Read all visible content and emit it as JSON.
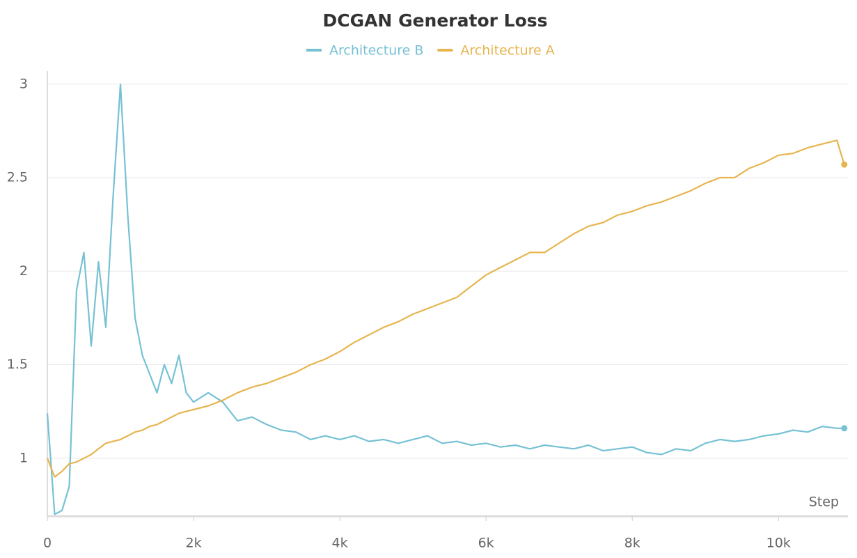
{
  "chart_data": {
    "type": "line",
    "title": "DCGAN Generator Loss",
    "x_label": "Step",
    "x": [
      0,
      100,
      200,
      300,
      400,
      500,
      600,
      700,
      800,
      900,
      1000,
      1100,
      1200,
      1300,
      1400,
      1500,
      1600,
      1700,
      1800,
      1900,
      2000,
      2200,
      2400,
      2600,
      2800,
      3000,
      3200,
      3400,
      3600,
      3800,
      4000,
      4200,
      4400,
      4600,
      4800,
      5000,
      5200,
      5400,
      5600,
      5800,
      6000,
      6200,
      6400,
      6600,
      6800,
      7000,
      7200,
      7400,
      7600,
      7800,
      8000,
      8200,
      8400,
      8600,
      8800,
      9000,
      9200,
      9400,
      9600,
      9800,
      10000,
      10200,
      10400,
      10600,
      10800,
      10900
    ],
    "series": [
      {
        "name": "Architecture B",
        "color": "#76c1d4",
        "values": [
          1.24,
          0.7,
          0.72,
          0.85,
          1.9,
          2.1,
          1.6,
          2.05,
          1.7,
          2.4,
          3.0,
          2.3,
          1.75,
          1.55,
          1.45,
          1.35,
          1.5,
          1.4,
          1.55,
          1.35,
          1.3,
          1.35,
          1.3,
          1.2,
          1.22,
          1.18,
          1.15,
          1.14,
          1.1,
          1.12,
          1.1,
          1.12,
          1.09,
          1.1,
          1.08,
          1.1,
          1.12,
          1.08,
          1.09,
          1.07,
          1.08,
          1.06,
          1.07,
          1.05,
          1.07,
          1.06,
          1.05,
          1.07,
          1.04,
          1.05,
          1.06,
          1.03,
          1.02,
          1.05,
          1.04,
          1.08,
          1.1,
          1.09,
          1.1,
          1.12,
          1.13,
          1.15,
          1.14,
          1.17,
          1.16,
          1.16
        ]
      },
      {
        "name": "Architecture A",
        "color": "#e6b54f",
        "values": [
          1.0,
          0.9,
          0.93,
          0.97,
          0.98,
          1.0,
          1.02,
          1.05,
          1.08,
          1.09,
          1.1,
          1.12,
          1.14,
          1.15,
          1.17,
          1.18,
          1.2,
          1.22,
          1.24,
          1.25,
          1.26,
          1.28,
          1.31,
          1.35,
          1.38,
          1.4,
          1.43,
          1.46,
          1.5,
          1.53,
          1.57,
          1.62,
          1.66,
          1.7,
          1.73,
          1.77,
          1.8,
          1.83,
          1.86,
          1.92,
          1.98,
          2.02,
          2.06,
          2.1,
          2.1,
          2.15,
          2.2,
          2.24,
          2.26,
          2.3,
          2.32,
          2.35,
          2.37,
          2.4,
          2.43,
          2.47,
          2.5,
          2.5,
          2.55,
          2.58,
          2.62,
          2.63,
          2.66,
          2.68,
          2.7,
          2.57
        ]
      }
    ],
    "xlim": [
      0,
      10950
    ],
    "ylim": [
      0.69,
      3.07
    ],
    "xticks": [
      0,
      {
        "value": 2000,
        "label": "2k"
      },
      {
        "value": 4000,
        "label": "4k"
      },
      {
        "value": 6000,
        "label": "6k"
      },
      {
        "value": 8000,
        "label": "8k"
      },
      {
        "value": 10000,
        "label": "10k"
      }
    ],
    "yticks": [
      1,
      1.5,
      2,
      2.5,
      3
    ],
    "grid": true
  }
}
